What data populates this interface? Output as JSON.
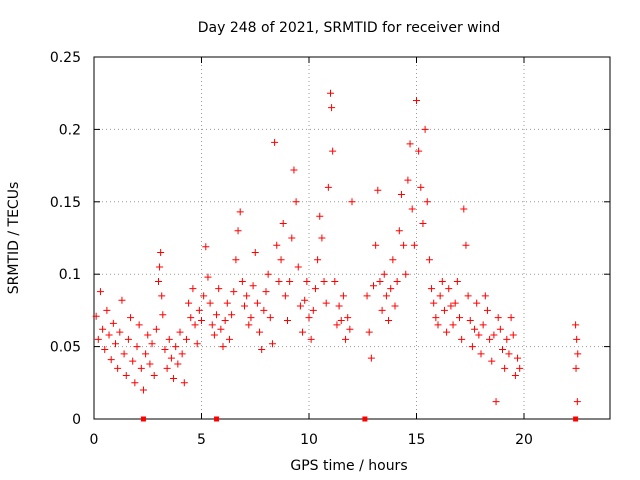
{
  "chart_data": {
    "type": "scatter",
    "title": "Day 248 of 2021, SRMTID for receiver wind",
    "xlabel": "GPS time / hours",
    "ylabel": "SRMTID / TECUs",
    "xlim": [
      0,
      24
    ],
    "ylim": [
      0,
      0.25
    ],
    "xticks": [
      0,
      5,
      10,
      15,
      20
    ],
    "xtick_labels": [
      "0",
      "5",
      "10",
      "15",
      "20"
    ],
    "yticks": [
      0,
      0.05,
      0.1,
      0.15,
      0.2,
      0.25
    ],
    "ytick_labels": [
      "0",
      "0.05",
      "0.1",
      "0.15",
      "0.2",
      "0.25"
    ],
    "grid": true,
    "marker": "+",
    "color": "#ff0000",
    "series": [
      {
        "name": "SRMTID",
        "points": [
          [
            0.1,
            0.071
          ],
          [
            0.2,
            0.055
          ],
          [
            0.3,
            0.088
          ],
          [
            0.4,
            0.062
          ],
          [
            0.5,
            0.048
          ],
          [
            0.6,
            0.075
          ],
          [
            0.7,
            0.058
          ],
          [
            0.8,
            0.041
          ],
          [
            0.9,
            0.066
          ],
          [
            1.0,
            0.052
          ],
          [
            1.1,
            0.035
          ],
          [
            1.2,
            0.06
          ],
          [
            1.3,
            0.082
          ],
          [
            1.4,
            0.045
          ],
          [
            1.5,
            0.03
          ],
          [
            1.6,
            0.055
          ],
          [
            1.7,
            0.07
          ],
          [
            1.8,
            0.04
          ],
          [
            1.9,
            0.025
          ],
          [
            2.0,
            0.05
          ],
          [
            2.1,
            0.065
          ],
          [
            2.2,
            0.035
          ],
          [
            2.3,
            0.02
          ],
          [
            2.4,
            0.045
          ],
          [
            2.5,
            0.058
          ],
          [
            2.6,
            0.038
          ],
          [
            2.7,
            0.052
          ],
          [
            2.8,
            0.03
          ],
          [
            2.9,
            0.062
          ],
          [
            3.0,
            0.095
          ],
          [
            3.05,
            0.105
          ],
          [
            3.1,
            0.115
          ],
          [
            3.15,
            0.085
          ],
          [
            3.2,
            0.072
          ],
          [
            3.3,
            0.048
          ],
          [
            3.4,
            0.035
          ],
          [
            3.5,
            0.055
          ],
          [
            3.6,
            0.042
          ],
          [
            3.7,
            0.028
          ],
          [
            3.8,
            0.05
          ],
          [
            3.9,
            0.038
          ],
          [
            4.0,
            0.06
          ],
          [
            4.1,
            0.045
          ],
          [
            4.2,
            0.025
          ],
          [
            4.3,
            0.055
          ],
          [
            4.4,
            0.08
          ],
          [
            4.5,
            0.07
          ],
          [
            4.6,
            0.09
          ],
          [
            4.7,
            0.065
          ],
          [
            4.8,
            0.052
          ],
          [
            4.9,
            0.075
          ],
          [
            5.0,
            0.068
          ],
          [
            5.1,
            0.085
          ],
          [
            5.2,
            0.119
          ],
          [
            5.3,
            0.098
          ],
          [
            5.4,
            0.08
          ],
          [
            5.5,
            0.065
          ],
          [
            5.6,
            0.058
          ],
          [
            5.7,
            0.072
          ],
          [
            5.8,
            0.09
          ],
          [
            5.9,
            0.062
          ],
          [
            6.0,
            0.05
          ],
          [
            6.1,
            0.068
          ],
          [
            6.2,
            0.08
          ],
          [
            6.3,
            0.055
          ],
          [
            6.4,
            0.072
          ],
          [
            6.5,
            0.088
          ],
          [
            6.6,
            0.11
          ],
          [
            6.7,
            0.13
          ],
          [
            6.8,
            0.143
          ],
          [
            6.9,
            0.095
          ],
          [
            7.0,
            0.078
          ],
          [
            7.1,
            0.085
          ],
          [
            7.2,
            0.065
          ],
          [
            7.3,
            0.07
          ],
          [
            7.4,
            0.092
          ],
          [
            7.5,
            0.115
          ],
          [
            7.6,
            0.08
          ],
          [
            7.7,
            0.06
          ],
          [
            7.8,
            0.048
          ],
          [
            7.9,
            0.075
          ],
          [
            8.0,
            0.088
          ],
          [
            8.1,
            0.1
          ],
          [
            8.2,
            0.07
          ],
          [
            8.3,
            0.052
          ],
          [
            8.4,
            0.191
          ],
          [
            8.5,
            0.12
          ],
          [
            8.6,
            0.095
          ],
          [
            8.7,
            0.11
          ],
          [
            8.8,
            0.135
          ],
          [
            8.9,
            0.085
          ],
          [
            9.0,
            0.068
          ],
          [
            9.1,
            0.095
          ],
          [
            9.2,
            0.125
          ],
          [
            9.3,
            0.172
          ],
          [
            9.4,
            0.15
          ],
          [
            9.5,
            0.105
          ],
          [
            9.6,
            0.078
          ],
          [
            9.7,
            0.06
          ],
          [
            9.8,
            0.082
          ],
          [
            9.9,
            0.095
          ],
          [
            10.0,
            0.07
          ],
          [
            10.1,
            0.055
          ],
          [
            10.2,
            0.075
          ],
          [
            10.3,
            0.09
          ],
          [
            10.4,
            0.11
          ],
          [
            10.5,
            0.14
          ],
          [
            10.6,
            0.125
          ],
          [
            10.7,
            0.095
          ],
          [
            10.8,
            0.08
          ],
          [
            10.9,
            0.16
          ],
          [
            11.0,
            0.225
          ],
          [
            11.05,
            0.215
          ],
          [
            11.1,
            0.185
          ],
          [
            11.2,
            0.095
          ],
          [
            11.3,
            0.065
          ],
          [
            11.4,
            0.078
          ],
          [
            11.5,
            0.068
          ],
          [
            11.6,
            0.085
          ],
          [
            11.7,
            0.055
          ],
          [
            11.8,
            0.07
          ],
          [
            11.9,
            0.062
          ],
          [
            12.0,
            0.15
          ],
          [
            12.7,
            0.085
          ],
          [
            12.8,
            0.06
          ],
          [
            12.9,
            0.042
          ],
          [
            13.0,
            0.092
          ],
          [
            13.1,
            0.12
          ],
          [
            13.2,
            0.158
          ],
          [
            13.3,
            0.095
          ],
          [
            13.4,
            0.075
          ],
          [
            13.5,
            0.1
          ],
          [
            13.6,
            0.085
          ],
          [
            13.7,
            0.068
          ],
          [
            13.8,
            0.09
          ],
          [
            13.9,
            0.11
          ],
          [
            14.0,
            0.078
          ],
          [
            14.1,
            0.095
          ],
          [
            14.2,
            0.13
          ],
          [
            14.3,
            0.155
          ],
          [
            14.4,
            0.12
          ],
          [
            14.5,
            0.1
          ],
          [
            14.6,
            0.165
          ],
          [
            14.7,
            0.19
          ],
          [
            14.8,
            0.145
          ],
          [
            14.9,
            0.12
          ],
          [
            15.0,
            0.22
          ],
          [
            15.1,
            0.185
          ],
          [
            15.2,
            0.16
          ],
          [
            15.3,
            0.135
          ],
          [
            15.4,
            0.2
          ],
          [
            15.5,
            0.15
          ],
          [
            15.6,
            0.11
          ],
          [
            15.7,
            0.09
          ],
          [
            15.8,
            0.08
          ],
          [
            15.9,
            0.07
          ],
          [
            16.0,
            0.065
          ],
          [
            16.1,
            0.085
          ],
          [
            16.2,
            0.095
          ],
          [
            16.3,
            0.075
          ],
          [
            16.4,
            0.06
          ],
          [
            16.5,
            0.09
          ],
          [
            16.6,
            0.078
          ],
          [
            16.7,
            0.065
          ],
          [
            16.8,
            0.08
          ],
          [
            16.9,
            0.095
          ],
          [
            17.0,
            0.07
          ],
          [
            17.1,
            0.055
          ],
          [
            17.2,
            0.145
          ],
          [
            17.3,
            0.12
          ],
          [
            17.4,
            0.085
          ],
          [
            17.5,
            0.068
          ],
          [
            17.6,
            0.05
          ],
          [
            17.7,
            0.062
          ],
          [
            17.8,
            0.08
          ],
          [
            17.9,
            0.058
          ],
          [
            18.0,
            0.045
          ],
          [
            18.1,
            0.065
          ],
          [
            18.2,
            0.085
          ],
          [
            18.3,
            0.075
          ],
          [
            18.4,
            0.055
          ],
          [
            18.5,
            0.04
          ],
          [
            18.6,
            0.058
          ],
          [
            18.7,
            0.012
          ],
          [
            18.8,
            0.07
          ],
          [
            18.9,
            0.062
          ],
          [
            19.0,
            0.048
          ],
          [
            19.1,
            0.035
          ],
          [
            19.2,
            0.055
          ],
          [
            19.3,
            0.045
          ],
          [
            19.4,
            0.07
          ],
          [
            19.5,
            0.058
          ],
          [
            19.6,
            0.03
          ],
          [
            19.7,
            0.042
          ],
          [
            19.8,
            0.035
          ],
          [
            22.4,
            0.065
          ],
          [
            22.45,
            0.055
          ],
          [
            22.5,
            0.045
          ],
          [
            22.42,
            0.035
          ],
          [
            22.48,
            0.012
          ]
        ]
      }
    ],
    "gap_markers_x": [
      2.3,
      5.7,
      12.6,
      22.4
    ]
  }
}
